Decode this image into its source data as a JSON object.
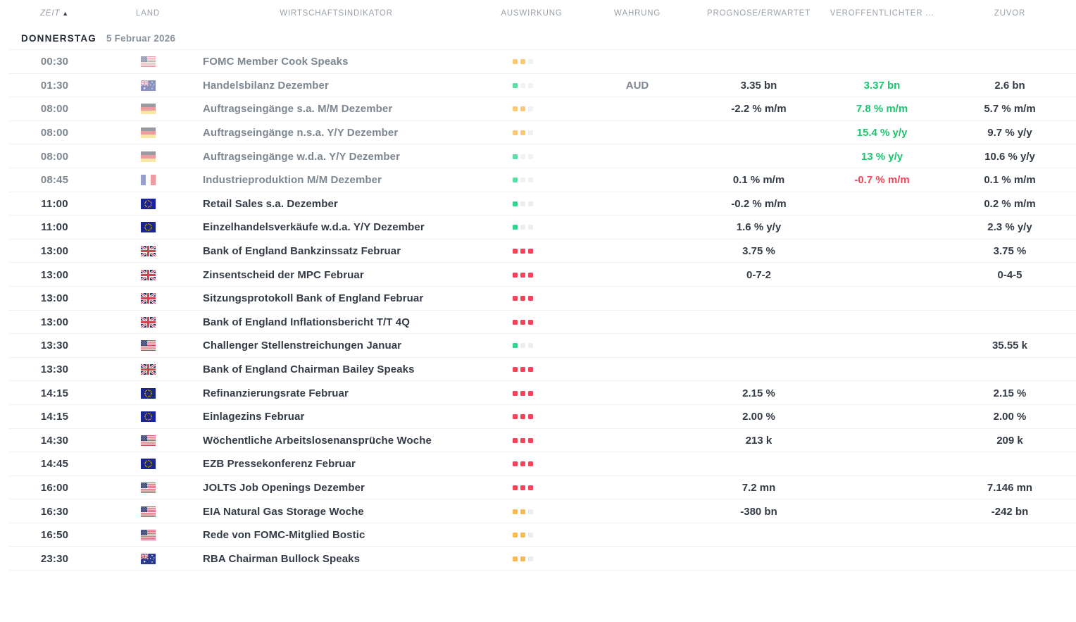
{
  "columns": {
    "time": "ZEIT",
    "country": "LAND",
    "indicator": "WIRTSCHAFTSINDIKATOR",
    "impact": "AUSWIRKUNG",
    "currency": "WÄHRUNG",
    "forecast": "PROGNOSE/ERWARTET",
    "published": "VERÖFFENTLICHTER ...",
    "previous": "ZUVOR"
  },
  "sort": {
    "column": "time",
    "direction": "asc",
    "icon": "▲"
  },
  "date_header": {
    "day": "DONNERSTAG",
    "date": "5 Februar 2026"
  },
  "colors": {
    "value_green": "#1ec46f",
    "value_red": "#f4455a",
    "impact": {
      "green": "#35d392",
      "orange": "#fbba53",
      "red": "#f4435a",
      "neutral": "#ebedef"
    }
  },
  "rows": [
    {
      "time": "00:30",
      "country": "us",
      "indicator": "FOMC Member Cook Speaks",
      "impact": "medium",
      "released": true,
      "currency": "",
      "forecast": "",
      "published": "",
      "published_color": "",
      "previous": ""
    },
    {
      "time": "01:30",
      "country": "au",
      "indicator": "Handelsbilanz Dezember",
      "impact": "low",
      "released": true,
      "currency": "AUD",
      "forecast": "3.35 bn",
      "published": "3.37 bn",
      "published_color": "green",
      "previous": "2.6 bn"
    },
    {
      "time": "08:00",
      "country": "de",
      "indicator": "Auftragseingänge s.a. M/M Dezember",
      "impact": "medium",
      "released": true,
      "currency": "",
      "forecast": "-2.2 % m/m",
      "published": "7.8 % m/m",
      "published_color": "green",
      "previous": "5.7 % m/m"
    },
    {
      "time": "08:00",
      "country": "de",
      "indicator": "Auftragseingänge n.s.a. Y/Y Dezember",
      "impact": "medium",
      "released": true,
      "currency": "",
      "forecast": "",
      "published": "15.4 % y/y",
      "published_color": "green",
      "previous": "9.7 % y/y"
    },
    {
      "time": "08:00",
      "country": "de",
      "indicator": "Auftragseingänge w.d.a. Y/Y Dezember",
      "impact": "low",
      "released": true,
      "currency": "",
      "forecast": "",
      "published": "13 % y/y",
      "published_color": "green",
      "previous": "10.6 % y/y"
    },
    {
      "time": "08:45",
      "country": "fr",
      "indicator": "Industrieproduktion M/M Dezember",
      "impact": "low",
      "released": true,
      "currency": "",
      "forecast": "0.1 % m/m",
      "published": "-0.7 % m/m",
      "published_color": "red",
      "previous": "0.1 % m/m"
    },
    {
      "time": "11:00",
      "country": "eu",
      "indicator": "Retail Sales s.a. Dezember",
      "impact": "low",
      "released": false,
      "currency": "",
      "forecast": "-0.2 % m/m",
      "published": "",
      "published_color": "",
      "previous": "0.2 % m/m"
    },
    {
      "time": "11:00",
      "country": "eu",
      "indicator": "Einzelhandelsverkäufe w.d.a. Y/Y Dezember",
      "impact": "low",
      "released": false,
      "currency": "",
      "forecast": "1.6 % y/y",
      "published": "",
      "published_color": "",
      "previous": "2.3 % y/y"
    },
    {
      "time": "13:00",
      "country": "gb",
      "indicator": "Bank of England Bankzinssatz Februar",
      "impact": "high",
      "released": false,
      "currency": "",
      "forecast": "3.75 %",
      "published": "",
      "published_color": "",
      "previous": "3.75 %"
    },
    {
      "time": "13:00",
      "country": "gb",
      "indicator": "Zinsentscheid der MPC Februar",
      "impact": "high",
      "released": false,
      "currency": "",
      "forecast": "0-7-2",
      "published": "",
      "published_color": "",
      "previous": "0-4-5"
    },
    {
      "time": "13:00",
      "country": "gb",
      "indicator": "Sitzungsprotokoll Bank of England Februar",
      "impact": "high",
      "released": false,
      "currency": "",
      "forecast": "",
      "published": "",
      "published_color": "",
      "previous": ""
    },
    {
      "time": "13:00",
      "country": "gb",
      "indicator": "Bank of England Inflationsbericht T/T 4Q",
      "impact": "high",
      "released": false,
      "currency": "",
      "forecast": "",
      "published": "",
      "published_color": "",
      "previous": ""
    },
    {
      "time": "13:30",
      "country": "us",
      "indicator": "Challenger Stellenstreichungen Januar",
      "impact": "low",
      "released": false,
      "currency": "",
      "forecast": "",
      "published": "",
      "published_color": "",
      "previous": "35.55 k"
    },
    {
      "time": "13:30",
      "country": "gb",
      "indicator": "Bank of England Chairman Bailey Speaks",
      "impact": "high",
      "released": false,
      "currency": "",
      "forecast": "",
      "published": "",
      "published_color": "",
      "previous": ""
    },
    {
      "time": "14:15",
      "country": "eu",
      "indicator": "Refinanzierungsrate Februar",
      "impact": "high",
      "released": false,
      "currency": "",
      "forecast": "2.15 %",
      "published": "",
      "published_color": "",
      "previous": "2.15 %"
    },
    {
      "time": "14:15",
      "country": "eu",
      "indicator": "Einlagezins Februar",
      "impact": "high",
      "released": false,
      "currency": "",
      "forecast": "2.00 %",
      "published": "",
      "published_color": "",
      "previous": "2.00 %"
    },
    {
      "time": "14:30",
      "country": "us",
      "indicator": "Wöchentliche Arbeitslosenansprüche Woche",
      "impact": "high",
      "released": false,
      "currency": "",
      "forecast": "213 k",
      "published": "",
      "published_color": "",
      "previous": "209 k"
    },
    {
      "time": "14:45",
      "country": "eu",
      "indicator": "EZB Pressekonferenz Februar",
      "impact": "high",
      "released": false,
      "currency": "",
      "forecast": "",
      "published": "",
      "published_color": "",
      "previous": ""
    },
    {
      "time": "16:00",
      "country": "us",
      "indicator": "JOLTS Job Openings Dezember",
      "impact": "high",
      "released": false,
      "currency": "",
      "forecast": "7.2 mn",
      "published": "",
      "published_color": "",
      "previous": "7.146 mn"
    },
    {
      "time": "16:30",
      "country": "us",
      "indicator": "EIA Natural Gas Storage Woche",
      "impact": "medium",
      "released": false,
      "currency": "",
      "forecast": "-380 bn",
      "published": "",
      "published_color": "",
      "previous": "-242 bn"
    },
    {
      "time": "16:50",
      "country": "us",
      "indicator": "Rede von FOMC-Mitglied Bostic",
      "impact": "medium",
      "released": false,
      "currency": "",
      "forecast": "",
      "published": "",
      "published_color": "",
      "previous": ""
    },
    {
      "time": "23:30",
      "country": "au",
      "indicator": "RBA Chairman Bullock Speaks",
      "impact": "medium",
      "released": false,
      "currency": "",
      "forecast": "",
      "published": "",
      "published_color": "",
      "previous": ""
    }
  ]
}
